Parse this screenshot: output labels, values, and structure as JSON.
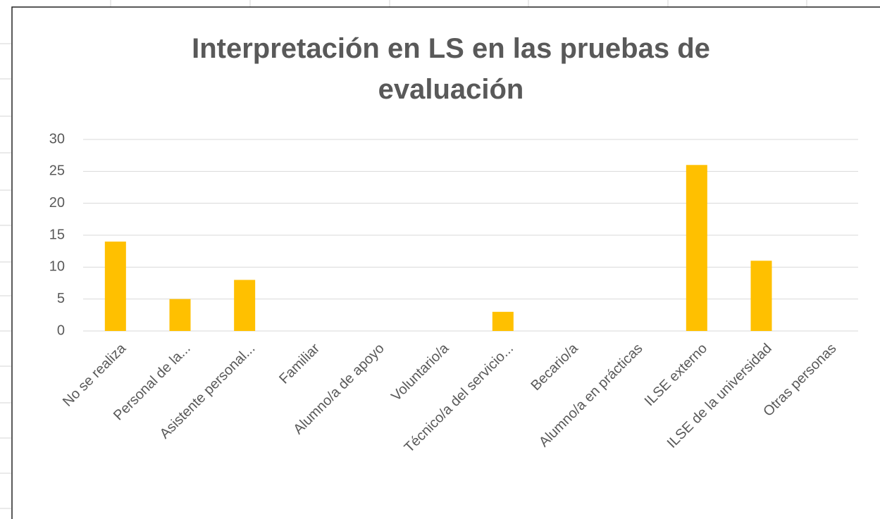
{
  "chart_data": {
    "type": "bar",
    "title": "Interpretación en LS en las pruebas de evaluación",
    "categories": [
      "No se realiza",
      "Personal de la...",
      "Asistente personal...",
      "Familiar",
      "Alumno/a de apoyo",
      "Voluntario/a",
      "Técnico/a del servicio...",
      "Becario/a",
      "Alumno/a en prácticas",
      "ILSE externo",
      "ILSE de la universidad",
      "Otras personas"
    ],
    "values": [
      14,
      5,
      8,
      0,
      0,
      0,
      3,
      0,
      0,
      26,
      11,
      0
    ],
    "color": "#ffc000",
    "ylim": [
      0,
      30
    ],
    "yticks": [
      0,
      5,
      10,
      15,
      20,
      25,
      30
    ],
    "grid": true
  }
}
